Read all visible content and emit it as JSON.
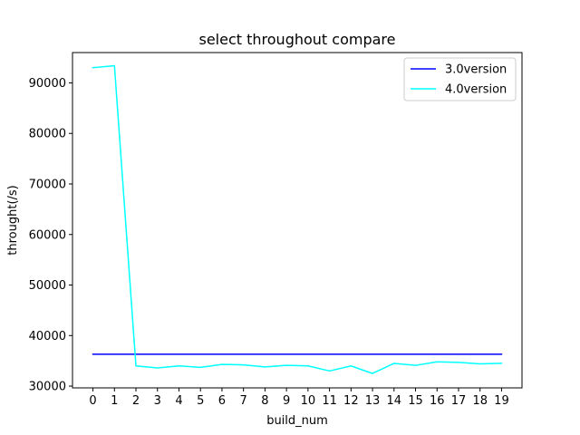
{
  "chart_data": {
    "type": "line",
    "title": "select throughout compare",
    "xlabel": "build_num",
    "ylabel": "throught(/s)",
    "x": [
      0,
      1,
      2,
      3,
      4,
      5,
      6,
      7,
      8,
      9,
      10,
      11,
      12,
      13,
      14,
      15,
      16,
      17,
      18,
      19
    ],
    "x_ticks": [
      "0",
      "1",
      "2",
      "3",
      "4",
      "5",
      "6",
      "7",
      "8",
      "9",
      "10",
      "11",
      "12",
      "13",
      "14",
      "15",
      "16",
      "17",
      "18",
      "19"
    ],
    "y_ticks": [
      "30000",
      "40000",
      "50000",
      "60000",
      "70000",
      "80000",
      "90000"
    ],
    "xlim": [
      -0.95,
      19.95
    ],
    "ylim": [
      29650,
      96000
    ],
    "legend_position": "top-right",
    "grid": false,
    "series": [
      {
        "name": "3.0version",
        "color": "#0000ff",
        "values": [
          36300,
          36300,
          36300,
          36300,
          36300,
          36300,
          36300,
          36300,
          36300,
          36300,
          36300,
          36300,
          36300,
          36300,
          36300,
          36300,
          36300,
          36300,
          36300,
          36300
        ]
      },
      {
        "name": "4.0version",
        "color": "#00ffff",
        "values": [
          93000,
          93400,
          34000,
          33600,
          34000,
          33700,
          34300,
          34200,
          33800,
          34100,
          34000,
          33000,
          34000,
          32500,
          34500,
          34100,
          34800,
          34700,
          34400,
          34500
        ]
      }
    ]
  }
}
